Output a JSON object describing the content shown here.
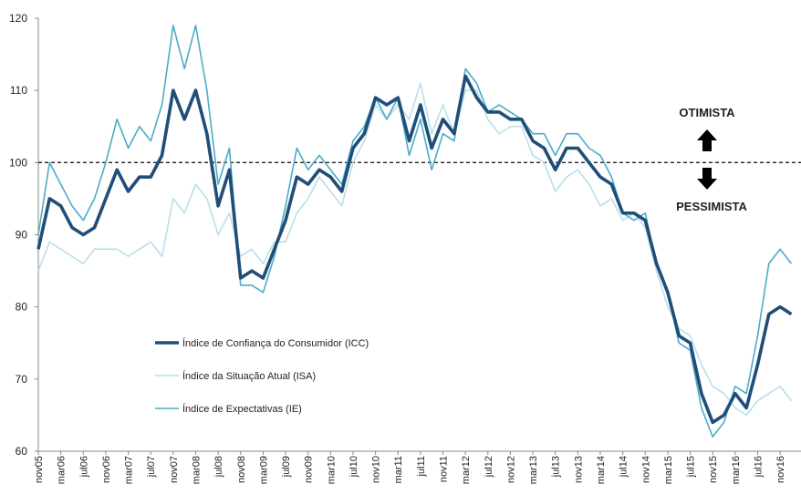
{
  "chart_data": {
    "type": "line",
    "categories": [
      "nov05",
      null,
      "mar06",
      null,
      "jul06",
      null,
      "nov06",
      null,
      "mar07",
      null,
      "jul07",
      null,
      "nov07",
      null,
      "mar08",
      null,
      "jul08",
      null,
      "nov08",
      null,
      "mar09",
      null,
      "jul09",
      null,
      "nov09",
      null,
      "mar10",
      null,
      "jul10",
      null,
      "nov10",
      null,
      "mar11",
      null,
      "jul11",
      null,
      "nov11",
      null,
      "mar12",
      null,
      "jul12",
      null,
      "nov12",
      null,
      "mar13",
      null,
      "jul13",
      null,
      "nov13",
      null,
      "mar14",
      null,
      "jul14",
      null,
      "nov14",
      null,
      "mar15",
      null,
      "jul15",
      null,
      "nov15",
      null,
      "mar16",
      null,
      "jul16",
      null,
      "nov16",
      null
    ],
    "series": [
      {
        "name": "Índice da Situação Atual (ISA)",
        "color": "#b9dfea",
        "width": 1.6,
        "values": [
          85,
          89,
          88,
          87,
          86,
          88,
          88,
          88,
          87,
          88,
          89,
          87,
          95,
          93,
          97,
          95,
          90,
          93,
          87,
          88,
          86,
          89,
          89,
          93,
          95,
          98,
          96,
          94,
          100,
          103,
          108,
          106,
          108,
          106,
          111,
          104,
          108,
          104,
          110,
          110,
          106,
          104,
          105,
          105,
          101,
          100,
          96,
          98,
          99,
          97,
          94,
          95,
          92,
          93,
          91,
          85,
          80,
          77,
          76,
          72,
          69,
          68,
          66,
          65,
          67,
          68,
          69,
          67
        ]
      },
      {
        "name": "Índice de Expectativas (IE)",
        "color": "#4bacc6",
        "width": 1.6,
        "values": [
          90,
          100,
          97,
          94,
          92,
          95,
          100,
          106,
          102,
          105,
          103,
          108,
          119,
          113,
          119,
          110,
          97,
          102,
          83,
          83,
          82,
          87,
          94,
          102,
          99,
          101,
          99,
          97,
          103,
          105,
          109,
          106,
          109,
          101,
          106,
          99,
          104,
          103,
          113,
          111,
          107,
          108,
          107,
          106,
          104,
          104,
          101,
          104,
          104,
          102,
          101,
          98,
          93,
          92,
          93,
          86,
          82,
          75,
          74,
          66,
          62,
          64,
          69,
          68,
          76,
          86,
          88,
          86
        ]
      },
      {
        "name": "Índice de Confiança do Consumidor (ICC)",
        "color": "#1f4e79",
        "width": 3.6,
        "values": [
          88,
          95,
          94,
          91,
          90,
          91,
          95,
          99,
          96,
          98,
          98,
          101,
          110,
          106,
          110,
          104,
          94,
          99,
          84,
          85,
          84,
          88,
          92,
          98,
          97,
          99,
          98,
          96,
          102,
          104,
          109,
          108,
          109,
          103,
          108,
          102,
          106,
          104,
          112,
          109,
          107,
          107,
          106,
          106,
          103,
          102,
          99,
          102,
          102,
          100,
          98,
          97,
          93,
          93,
          92,
          86,
          82,
          76,
          75,
          68,
          64,
          65,
          68,
          66,
          72,
          79,
          80,
          79
        ]
      }
    ],
    "legend_order": [
      2,
      0,
      1
    ],
    "ylim": [
      60,
      120
    ],
    "yticks": [
      60,
      70,
      80,
      90,
      100,
      110,
      120
    ],
    "reference_line": 100,
    "annotations": [
      "OTIMISTA",
      "PESSIMISTA"
    ]
  }
}
